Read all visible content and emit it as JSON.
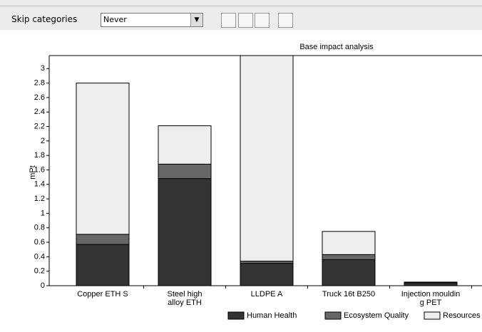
{
  "toolbar": {
    "label": "Skip categories",
    "option": "Never"
  },
  "chart_data": {
    "type": "stacked_bar",
    "title": "Base impact analysis",
    "y_label": "mPt",
    "categories": [
      "Copper ETH S",
      "Steel high\nalloy ETH",
      "LLDPE A",
      "Truck 16t B250",
      "Injection mouldin\ng PET"
    ],
    "series": [
      {
        "name": "Human Health",
        "color": "#333333",
        "values": [
          0.57,
          1.48,
          0.31,
          0.36,
          0.04
        ]
      },
      {
        "name": "Ecosystem Quality",
        "color": "#666666",
        "values": [
          0.14,
          0.2,
          0.03,
          0.07,
          0.01
        ]
      },
      {
        "name": "Resources",
        "color": "#eeeeee",
        "values": [
          2.09,
          0.53,
          2.9,
          0.32,
          0
        ]
      }
    ],
    "ylim": [
      0,
      3.18
    ],
    "yticks": [
      0,
      0.2,
      0.4,
      0.6,
      0.8,
      1,
      1.2,
      1.4,
      1.6,
      1.8,
      2,
      2.2,
      2.4,
      2.6,
      2.8,
      3
    ],
    "legend": "bottom-right"
  }
}
